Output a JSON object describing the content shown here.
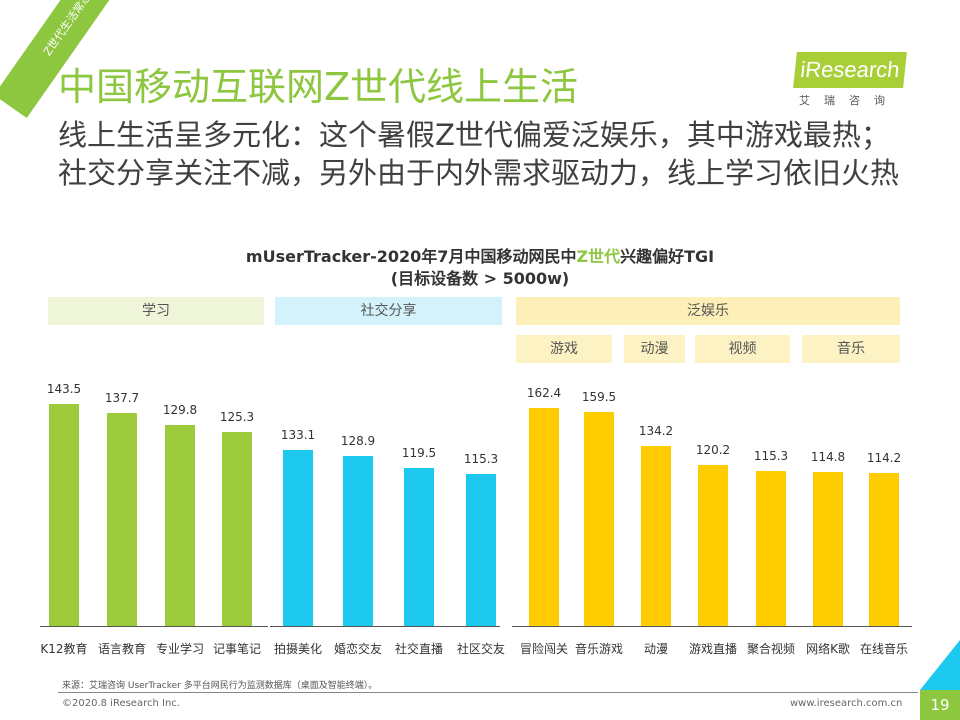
{
  "corner_tag": "Z世代生活常态",
  "title": "中国移动互联网Z世代线上生活",
  "subtitle": "线上生活呈多元化：这个暑假Z世代偏爱泛娱乐，其中游戏最热；社交分享关注不减，另外由于内外需求驱动力，线上学习依旧火热",
  "logo": {
    "name": "iResearch",
    "cn": "艾瑞咨询"
  },
  "chart_data": {
    "type": "bar",
    "title_pre": "mUserTracker-2020年7月中国移动网民中",
    "title_hl": "Z世代",
    "title_post": "兴趣偏好TGI",
    "title_line2": "(目标设备数 > 5000w)",
    "groups": [
      {
        "name": "学习",
        "color": "#9dcb3c",
        "bg": "#eef5d8",
        "categories": [
          "K12教育",
          "语言教育",
          "专业学习",
          "记事笔记"
        ],
        "values": [
          143.5,
          137.7,
          129.8,
          125.3
        ],
        "value_labels": [
          "143.5",
          "137.7",
          "129.8",
          "125.3"
        ]
      },
      {
        "name": "社交分享",
        "color": "#1ec9ef",
        "bg": "#d4f2fb",
        "categories": [
          "拍摄美化",
          "婚恋交友",
          "社交直播",
          "社区交友"
        ],
        "values": [
          133.1,
          128.9,
          119.5,
          115.3
        ],
        "value_labels": [
          "133.1",
          "128.9",
          "119.5",
          "115.3"
        ]
      },
      {
        "name": "泛娱乐",
        "color": "#ffcc00",
        "bg": "#fdefb8",
        "categories": [
          "冒险闯关",
          "音乐游戏",
          "动漫",
          "游戏直播",
          "聚合视频",
          "网络K歌",
          "在线音乐"
        ],
        "values": [
          162.4,
          159.5,
          134.2,
          120.2,
          115.3,
          114.8,
          114.2
        ],
        "value_labels": [
          "162.4",
          "159.5",
          "134.2",
          "120.2",
          "115.3",
          "114.8",
          "114.2"
        ],
        "subgroups": [
          "游戏",
          "动漫",
          "视频",
          "音乐"
        ]
      }
    ]
  },
  "footer": {
    "source": "来源：艾瑞咨询 UserTracker 多平台网民行为监测数据库（桌面及智能终端）。",
    "copyright": "©2020.8 iResearch Inc.",
    "site": "www.iresearch.com.cn",
    "page": "19"
  }
}
